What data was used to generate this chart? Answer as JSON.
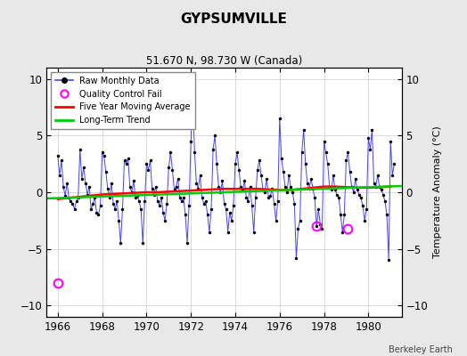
{
  "title": "GYPSUMVILLE",
  "subtitle": "51.670 N, 98.730 W (Canada)",
  "ylabel": "Temperature Anomaly (°C)",
  "credit": "Berkeley Earth",
  "xlim": [
    1965.5,
    1981.5
  ],
  "ylim": [
    -11,
    11
  ],
  "yticks": [
    -10,
    -5,
    0,
    5,
    10
  ],
  "xticks": [
    1966,
    1968,
    1970,
    1972,
    1974,
    1976,
    1978,
    1980
  ],
  "bg_color": "#e8e8e8",
  "plot_bg_color": "#ffffff",
  "raw_color": "#4444ff",
  "moving_avg_color": "#ff0000",
  "trend_color": "#00cc00",
  "qc_fail_color": "#ff00ff",
  "raw_data": [
    [
      1966.0,
      3.2
    ],
    [
      1966.083,
      1.5
    ],
    [
      1966.167,
      2.8
    ],
    [
      1966.25,
      0.5
    ],
    [
      1966.333,
      -0.3
    ],
    [
      1966.417,
      0.8
    ],
    [
      1966.5,
      -0.5
    ],
    [
      1966.583,
      -0.8
    ],
    [
      1966.667,
      -1.0
    ],
    [
      1966.75,
      -1.5
    ],
    [
      1966.833,
      -0.8
    ],
    [
      1966.917,
      -0.5
    ],
    [
      1967.0,
      3.8
    ],
    [
      1967.083,
      1.2
    ],
    [
      1967.167,
      2.2
    ],
    [
      1967.25,
      0.8
    ],
    [
      1967.333,
      -0.2
    ],
    [
      1967.417,
      0.5
    ],
    [
      1967.5,
      -1.5
    ],
    [
      1967.583,
      -1.0
    ],
    [
      1967.667,
      -0.5
    ],
    [
      1967.75,
      -1.8
    ],
    [
      1967.833,
      -2.0
    ],
    [
      1967.917,
      -1.2
    ],
    [
      1968.0,
      3.5
    ],
    [
      1968.083,
      3.2
    ],
    [
      1968.167,
      1.8
    ],
    [
      1968.25,
      0.3
    ],
    [
      1968.333,
      -0.5
    ],
    [
      1968.417,
      0.8
    ],
    [
      1968.5,
      -1.0
    ],
    [
      1968.583,
      -1.5
    ],
    [
      1968.667,
      -0.8
    ],
    [
      1968.75,
      -2.5
    ],
    [
      1968.833,
      -4.5
    ],
    [
      1968.917,
      -1.5
    ],
    [
      1969.0,
      2.8
    ],
    [
      1969.083,
      2.5
    ],
    [
      1969.167,
      3.0
    ],
    [
      1969.25,
      0.5
    ],
    [
      1969.333,
      0.0
    ],
    [
      1969.417,
      1.0
    ],
    [
      1969.5,
      -0.5
    ],
    [
      1969.583,
      -0.3
    ],
    [
      1969.667,
      -0.8
    ],
    [
      1969.75,
      -1.5
    ],
    [
      1969.833,
      -4.5
    ],
    [
      1969.917,
      -0.8
    ],
    [
      1970.0,
      2.5
    ],
    [
      1970.083,
      2.0
    ],
    [
      1970.167,
      2.8
    ],
    [
      1970.25,
      0.3
    ],
    [
      1970.333,
      -0.2
    ],
    [
      1970.417,
      0.5
    ],
    [
      1970.5,
      -0.8
    ],
    [
      1970.583,
      -1.2
    ],
    [
      1970.667,
      -0.5
    ],
    [
      1970.75,
      -1.8
    ],
    [
      1970.833,
      -2.5
    ],
    [
      1970.917,
      -1.0
    ],
    [
      1971.0,
      2.2
    ],
    [
      1971.083,
      3.5
    ],
    [
      1971.167,
      2.0
    ],
    [
      1971.25,
      0.2
    ],
    [
      1971.333,
      0.5
    ],
    [
      1971.417,
      1.2
    ],
    [
      1971.5,
      -0.5
    ],
    [
      1971.583,
      -0.8
    ],
    [
      1971.667,
      -0.5
    ],
    [
      1971.75,
      -2.0
    ],
    [
      1971.833,
      -4.5
    ],
    [
      1971.917,
      -1.2
    ],
    [
      1972.0,
      4.5
    ],
    [
      1972.083,
      8.5
    ],
    [
      1972.167,
      3.5
    ],
    [
      1972.25,
      0.8
    ],
    [
      1972.333,
      0.3
    ],
    [
      1972.417,
      1.5
    ],
    [
      1972.5,
      -0.5
    ],
    [
      1972.583,
      -1.0
    ],
    [
      1972.667,
      -0.8
    ],
    [
      1972.75,
      -2.0
    ],
    [
      1972.833,
      -3.5
    ],
    [
      1972.917,
      -1.5
    ],
    [
      1973.0,
      3.8
    ],
    [
      1973.083,
      5.0
    ],
    [
      1973.167,
      2.5
    ],
    [
      1973.25,
      0.5
    ],
    [
      1973.333,
      0.0
    ],
    [
      1973.417,
      1.0
    ],
    [
      1973.5,
      -1.0
    ],
    [
      1973.583,
      -1.5
    ],
    [
      1973.667,
      -3.5
    ],
    [
      1973.75,
      -1.8
    ],
    [
      1973.833,
      -2.5
    ],
    [
      1973.917,
      -1.2
    ],
    [
      1974.0,
      2.5
    ],
    [
      1974.083,
      3.5
    ],
    [
      1974.167,
      2.0
    ],
    [
      1974.25,
      0.5
    ],
    [
      1974.333,
      0.2
    ],
    [
      1974.417,
      1.0
    ],
    [
      1974.5,
      -0.5
    ],
    [
      1974.583,
      -0.8
    ],
    [
      1974.667,
      0.5
    ],
    [
      1974.75,
      -1.2
    ],
    [
      1974.833,
      -3.5
    ],
    [
      1974.917,
      -0.5
    ],
    [
      1975.0,
      2.0
    ],
    [
      1975.083,
      2.8
    ],
    [
      1975.167,
      1.5
    ],
    [
      1975.25,
      0.2
    ],
    [
      1975.333,
      0.0
    ],
    [
      1975.417,
      1.2
    ],
    [
      1975.5,
      -0.5
    ],
    [
      1975.583,
      -0.3
    ],
    [
      1975.667,
      0.3
    ],
    [
      1975.75,
      -1.0
    ],
    [
      1975.833,
      -2.5
    ],
    [
      1975.917,
      -0.8
    ],
    [
      1976.0,
      6.5
    ],
    [
      1976.083,
      3.0
    ],
    [
      1976.167,
      1.8
    ],
    [
      1976.25,
      0.5
    ],
    [
      1976.333,
      0.0
    ],
    [
      1976.417,
      1.5
    ],
    [
      1976.5,
      0.5
    ],
    [
      1976.583,
      0.0
    ],
    [
      1976.667,
      -1.0
    ],
    [
      1976.75,
      -5.8
    ],
    [
      1976.833,
      -3.2
    ],
    [
      1976.917,
      -2.5
    ],
    [
      1977.0,
      3.5
    ],
    [
      1977.083,
      5.5
    ],
    [
      1977.167,
      2.5
    ],
    [
      1977.25,
      0.8
    ],
    [
      1977.333,
      0.3
    ],
    [
      1977.417,
      1.2
    ],
    [
      1977.5,
      0.3
    ],
    [
      1977.583,
      -0.5
    ],
    [
      1977.667,
      -3.0
    ],
    [
      1977.75,
      -1.5
    ],
    [
      1977.833,
      -2.8
    ],
    [
      1977.917,
      -3.2
    ],
    [
      1978.0,
      4.5
    ],
    [
      1978.083,
      3.5
    ],
    [
      1978.167,
      2.5
    ],
    [
      1978.25,
      0.5
    ],
    [
      1978.333,
      0.2
    ],
    [
      1978.417,
      1.5
    ],
    [
      1978.5,
      0.2
    ],
    [
      1978.583,
      -0.2
    ],
    [
      1978.667,
      -0.5
    ],
    [
      1978.75,
      -2.0
    ],
    [
      1978.833,
      -3.5
    ],
    [
      1978.917,
      -2.0
    ],
    [
      1979.0,
      2.8
    ],
    [
      1979.083,
      3.5
    ],
    [
      1979.167,
      1.8
    ],
    [
      1979.25,
      0.5
    ],
    [
      1979.333,
      0.0
    ],
    [
      1979.417,
      1.2
    ],
    [
      1979.5,
      0.2
    ],
    [
      1979.583,
      -0.2
    ],
    [
      1979.667,
      -0.5
    ],
    [
      1979.75,
      -1.2
    ],
    [
      1979.833,
      -2.5
    ],
    [
      1979.917,
      -1.5
    ],
    [
      1980.0,
      4.8
    ],
    [
      1980.083,
      3.8
    ],
    [
      1980.167,
      5.5
    ],
    [
      1980.25,
      0.8
    ],
    [
      1980.333,
      0.5
    ],
    [
      1980.417,
      1.5
    ],
    [
      1980.5,
      0.5
    ],
    [
      1980.583,
      0.2
    ],
    [
      1980.667,
      -0.2
    ],
    [
      1980.75,
      -0.8
    ],
    [
      1980.833,
      -2.0
    ],
    [
      1980.917,
      -6.0
    ],
    [
      1981.0,
      4.5
    ],
    [
      1981.083,
      1.5
    ],
    [
      1981.167,
      2.5
    ]
  ],
  "qc_fail_points": [
    [
      1966.0,
      -8.0
    ],
    [
      1977.667,
      -3.0
    ],
    [
      1979.083,
      -3.2
    ]
  ],
  "moving_avg_x": [
    1966.0,
    1966.5,
    1967.0,
    1967.5,
    1968.0,
    1968.5,
    1969.0,
    1969.5,
    1970.0,
    1970.5,
    1971.0,
    1971.5,
    1972.0,
    1972.5,
    1973.0,
    1973.5,
    1974.0,
    1974.5,
    1975.0,
    1975.5,
    1976.0,
    1976.5,
    1977.0,
    1977.5,
    1978.0,
    1978.5,
    1979.0,
    1979.5,
    1980.0,
    1980.5,
    1981.0
  ],
  "moving_avg_y": [
    -0.6,
    -0.5,
    -0.4,
    -0.3,
    -0.2,
    -0.15,
    -0.1,
    -0.05,
    0.0,
    0.0,
    0.05,
    0.1,
    0.15,
    0.2,
    0.25,
    0.3,
    0.3,
    0.3,
    0.3,
    0.25,
    0.2,
    0.2,
    0.3,
    0.4,
    0.5,
    0.5,
    0.45,
    0.4,
    0.4,
    0.45,
    0.5
  ],
  "trend_x": [
    1965.5,
    1981.5
  ],
  "trend_y": [
    -0.55,
    0.55
  ]
}
